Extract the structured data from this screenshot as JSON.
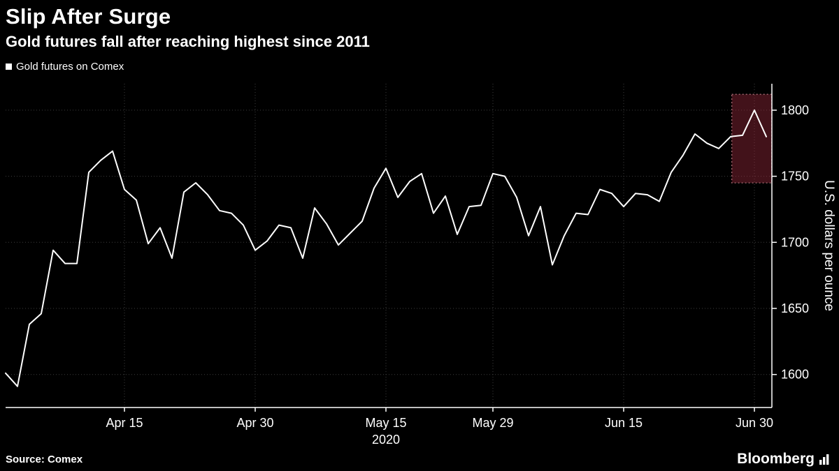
{
  "header": {
    "title": "Slip After Surge",
    "subtitle": "Gold futures fall after reaching highest since 2011"
  },
  "footer": {
    "source": "Source: Comex",
    "brand": "Bloomberg"
  },
  "colors": {
    "background": "#000000",
    "text": "#ffffff",
    "legend_marker": "#ffffff"
  },
  "chart_data": {
    "type": "line",
    "title": "Slip After Surge",
    "subtitle": "Gold futures fall after reaching highest since 2011",
    "xlabel": "",
    "ylabel": "U.S. dollars per ounce",
    "line_color": "#ffffff",
    "grid_color": "#3e3e3e",
    "axis_color": "#ffffff",
    "grid": "dotted",
    "legend_position": "top-left",
    "ylim": [
      1575,
      1820
    ],
    "yticks": [
      1600,
      1650,
      1700,
      1750,
      1800
    ],
    "xticks": [
      {
        "index": 10,
        "label": "Apr 15"
      },
      {
        "index": 21,
        "label": "Apr 30"
      },
      {
        "index": 32,
        "label": "May 15",
        "sublabel": "2020"
      },
      {
        "index": 41,
        "label": "May 29"
      },
      {
        "index": 52,
        "label": "Jun 15"
      },
      {
        "index": 63,
        "label": "Jun 30"
      }
    ],
    "highlight": {
      "x0": 61.1,
      "x1": 64.45,
      "y0": 1745,
      "y1": 1812,
      "fill": "rgba(158,44,62,0.42)",
      "stroke": "#a66a72"
    },
    "series": [
      {
        "name": "Gold futures on Comex",
        "dates": [
          "Mar 31",
          "Apr 1",
          "Apr 2",
          "Apr 3",
          "Apr 6",
          "Apr 7",
          "Apr 8",
          "Apr 9",
          "Apr 13",
          "Apr 14",
          "Apr 15",
          "Apr 16",
          "Apr 17",
          "Apr 20",
          "Apr 21",
          "Apr 22",
          "Apr 23",
          "Apr 24",
          "Apr 27",
          "Apr 28",
          "Apr 29",
          "Apr 30",
          "May 1",
          "May 4",
          "May 5",
          "May 6",
          "May 7",
          "May 8",
          "May 11",
          "May 12",
          "May 13",
          "May 14",
          "May 15",
          "May 18",
          "May 19",
          "May 20",
          "May 21",
          "May 22",
          "May 26",
          "May 27",
          "May 28",
          "May 29",
          "Jun 1",
          "Jun 2",
          "Jun 3",
          "Jun 4",
          "Jun 5",
          "Jun 8",
          "Jun 9",
          "Jun 10",
          "Jun 11",
          "Jun 12",
          "Jun 15",
          "Jun 16",
          "Jun 17",
          "Jun 18",
          "Jun 19",
          "Jun 22",
          "Jun 23",
          "Jun 24",
          "Jun 25",
          "Jun 26",
          "Jun 29",
          "Jun 30",
          "Jul 1"
        ],
        "values": [
          1601,
          1591,
          1638,
          1646,
          1694,
          1684,
          1684,
          1753,
          1762,
          1769,
          1740,
          1732,
          1699,
          1711,
          1688,
          1738,
          1745,
          1736,
          1724,
          1722,
          1713,
          1694,
          1701,
          1713,
          1711,
          1688,
          1726,
          1714,
          1698,
          1707,
          1716,
          1741,
          1756,
          1734,
          1746,
          1752,
          1722,
          1735,
          1706,
          1727,
          1728,
          1752,
          1750,
          1734,
          1705,
          1727,
          1683,
          1705,
          1722,
          1721,
          1740,
          1737,
          1727,
          1737,
          1736,
          1731,
          1753,
          1766,
          1782,
          1775,
          1771,
          1780,
          1781,
          1800,
          1780
        ]
      }
    ]
  }
}
